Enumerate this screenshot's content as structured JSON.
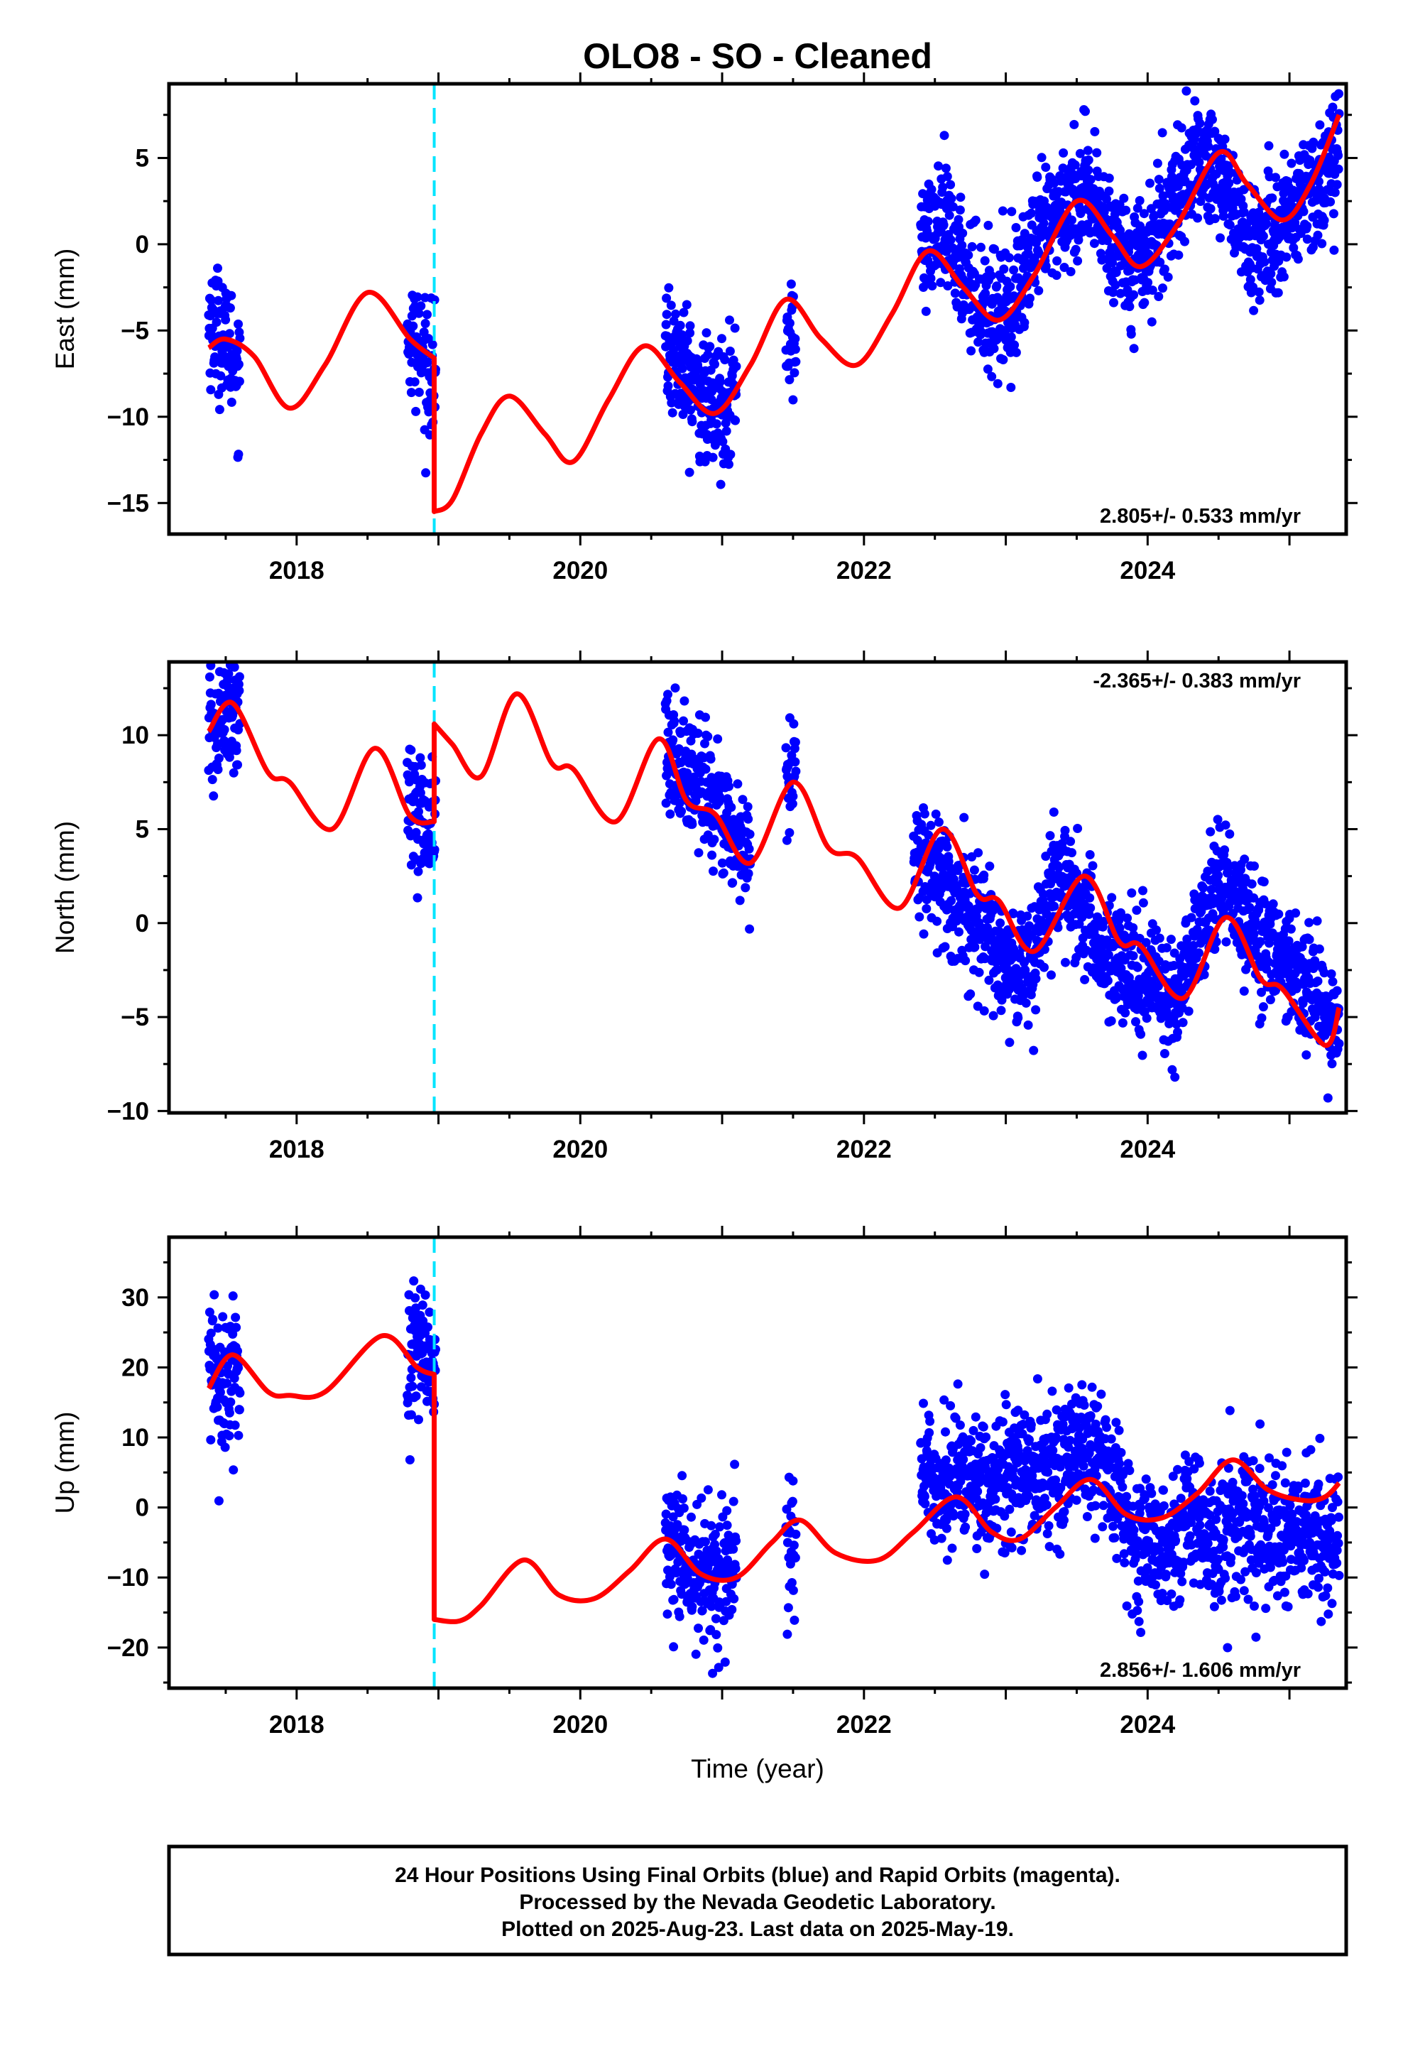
{
  "title": "OLO8  - SO - Cleaned",
  "colors": {
    "points": "#0000ff",
    "model": "#ff0000",
    "break": "#00e5ff",
    "frame": "#000000"
  },
  "footer": {
    "line1": "24 Hour Positions Using Final Orbits (blue) and Rapid Orbits (magenta).",
    "line2": "Processed by the Nevada Geodetic Laboratory.",
    "line3": "Plotted on 2025-Aug-23. Last data on 2025-May-19."
  },
  "chart_data": [
    {
      "type": "scatter",
      "ylabel": "East (mm)",
      "xlabel": "",
      "xlim": [
        2017.1,
        2025.4
      ],
      "ylim": [
        -16.8,
        9.3
      ],
      "xticks": [
        2018,
        2020,
        2022,
        2024
      ],
      "yticks": [
        -15,
        -10,
        -5,
        0,
        5
      ],
      "equipment_break": 2018.97,
      "rate": "2.805+/- 0.533 mm/yr",
      "rate_position": "bottom-right",
      "series": [
        {
          "role": "points",
          "segments": [
            {
              "x0": 2017.38,
              "x1": 2017.6,
              "y": [
                -4.5,
                -5.0,
                -6.0,
                -7.5
              ]
            },
            {
              "x0": 2018.78,
              "x1": 2018.98,
              "y": [
                -5.0,
                -6.0,
                -7.0,
                -8.0
              ]
            },
            {
              "x0": 2020.6,
              "x1": 2021.1,
              "y": [
                -6.0,
                -7.0,
                -9.0,
                -9.5,
                -8.0
              ]
            },
            {
              "x0": 2021.45,
              "x1": 2021.52,
              "y": [
                -5.0,
                -6.0
              ]
            },
            {
              "x0": 2022.4,
              "x1": 2025.35,
              "y": [
                0.0,
                1.0,
                -2.0,
                -4.0,
                -3.0,
                0.0,
                2.0,
                3.0,
                1.0,
                -1.0,
                0.0,
                3.0,
                5.0,
                4.0,
                0.0,
                0.0,
                2.0,
                3.0,
                6.0
              ]
            }
          ]
        },
        {
          "role": "model",
          "points": [
            [
              2017.38,
              -6.0
            ],
            [
              2017.5,
              -5.5
            ],
            [
              2017.7,
              -6.5
            ],
            [
              2017.95,
              -9.5
            ],
            [
              2018.2,
              -7.0
            ],
            [
              2018.5,
              -2.8
            ],
            [
              2018.8,
              -5.5
            ],
            [
              2018.97,
              -6.6
            ],
            [
              2018.97,
              -15.5
            ],
            [
              2019.1,
              -14.8
            ],
            [
              2019.3,
              -11.0
            ],
            [
              2019.5,
              -8.8
            ],
            [
              2019.75,
              -11.0
            ],
            [
              2019.95,
              -12.6
            ],
            [
              2020.2,
              -9.0
            ],
            [
              2020.45,
              -5.9
            ],
            [
              2020.7,
              -8.0
            ],
            [
              2020.95,
              -9.8
            ],
            [
              2021.2,
              -7.0
            ],
            [
              2021.45,
              -3.2
            ],
            [
              2021.7,
              -5.5
            ],
            [
              2021.95,
              -7.0
            ],
            [
              2022.2,
              -4.0
            ],
            [
              2022.45,
              -0.4
            ],
            [
              2022.7,
              -2.5
            ],
            [
              2022.95,
              -4.4
            ],
            [
              2023.2,
              -1.8
            ],
            [
              2023.5,
              2.5
            ],
            [
              2023.75,
              0.5
            ],
            [
              2023.95,
              -1.3
            ],
            [
              2024.2,
              1.0
            ],
            [
              2024.5,
              5.3
            ],
            [
              2024.7,
              3.5
            ],
            [
              2024.95,
              1.4
            ],
            [
              2025.15,
              3.5
            ],
            [
              2025.35,
              7.5
            ]
          ]
        }
      ]
    },
    {
      "type": "scatter",
      "ylabel": "North (mm)",
      "xlabel": "",
      "xlim": [
        2017.1,
        2025.4
      ],
      "ylim": [
        -10.1,
        13.9
      ],
      "xticks": [
        2018,
        2020,
        2022,
        2024
      ],
      "yticks": [
        -10,
        -5,
        0,
        5,
        10
      ],
      "equipment_break": 2018.97,
      "rate": "-2.365+/- 0.383 mm/yr",
      "rate_position": "top-right",
      "series": [
        {
          "role": "points",
          "segments": [
            {
              "x0": 2017.38,
              "x1": 2017.6,
              "y": [
                10.0,
                11.0,
                11.5
              ]
            },
            {
              "x0": 2018.78,
              "x1": 2018.98,
              "y": [
                6.5,
                5.5,
                5.0
              ]
            },
            {
              "x0": 2020.6,
              "x1": 2021.2,
              "y": [
                9.5,
                8.0,
                7.0,
                5.0,
                3.0
              ]
            },
            {
              "x0": 2021.45,
              "x1": 2021.52,
              "y": [
                8.0,
                8.0
              ]
            },
            {
              "x0": 2022.35,
              "x1": 2025.35,
              "y": [
                4.0,
                3.0,
                0.5,
                -0.5,
                -2.0,
                -2.5,
                2.5,
                1.0,
                -1.5,
                -2.5,
                -3.0,
                -4.5,
                -1.0,
                2.5,
                0.5,
                -1.5,
                -2.5,
                -3.5,
                -6.0
              ]
            }
          ]
        },
        {
          "role": "model",
          "points": [
            [
              2017.38,
              10.2
            ],
            [
              2017.55,
              11.7
            ],
            [
              2017.8,
              8.0
            ],
            [
              2017.95,
              7.5
            ],
            [
              2018.25,
              5.0
            ],
            [
              2018.55,
              9.3
            ],
            [
              2018.8,
              5.7
            ],
            [
              2018.97,
              5.4
            ],
            [
              2018.97,
              10.6
            ],
            [
              2019.1,
              9.5
            ],
            [
              2019.3,
              7.8
            ],
            [
              2019.55,
              12.2
            ],
            [
              2019.8,
              8.5
            ],
            [
              2019.95,
              8.2
            ],
            [
              2020.25,
              5.4
            ],
            [
              2020.55,
              9.8
            ],
            [
              2020.75,
              6.5
            ],
            [
              2020.95,
              5.8
            ],
            [
              2021.2,
              3.2
            ],
            [
              2021.5,
              7.5
            ],
            [
              2021.75,
              4.0
            ],
            [
              2021.95,
              3.5
            ],
            [
              2022.25,
              0.8
            ],
            [
              2022.55,
              5.0
            ],
            [
              2022.8,
              1.5
            ],
            [
              2022.95,
              1.2
            ],
            [
              2023.2,
              -1.5
            ],
            [
              2023.55,
              2.5
            ],
            [
              2023.8,
              -1.0
            ],
            [
              2023.95,
              -1.2
            ],
            [
              2024.25,
              -4.0
            ],
            [
              2024.55,
              0.3
            ],
            [
              2024.8,
              -3.0
            ],
            [
              2024.95,
              -3.5
            ],
            [
              2025.25,
              -6.5
            ],
            [
              2025.35,
              -4.5
            ]
          ]
        }
      ]
    },
    {
      "type": "scatter",
      "ylabel": "Up (mm)",
      "xlabel": "Time (year)",
      "xlim": [
        2017.1,
        2025.4
      ],
      "ylim": [
        -25.8,
        38.6
      ],
      "xticks": [
        2018,
        2020,
        2022,
        2024
      ],
      "yticks": [
        -20,
        -10,
        0,
        10,
        20,
        30
      ],
      "equipment_break": 2018.97,
      "rate": "2.856+/- 1.606 mm/yr",
      "rate_position": "bottom-right",
      "series": [
        {
          "role": "points",
          "segments": [
            {
              "x0": 2017.38,
              "x1": 2017.6,
              "y": [
                20.0,
                18.0,
                19.0
              ]
            },
            {
              "x0": 2018.78,
              "x1": 2018.98,
              "y": [
                20.0,
                22.0,
                18.0
              ]
            },
            {
              "x0": 2020.6,
              "x1": 2021.1,
              "y": [
                -5.0,
                -8.0,
                -10.0,
                -12.0,
                -8.0
              ]
            },
            {
              "x0": 2021.45,
              "x1": 2021.52,
              "y": [
                -5.0,
                -7.0
              ]
            },
            {
              "x0": 2022.4,
              "x1": 2025.35,
              "y": [
                5.0,
                3.0,
                5.0,
                2.0,
                6.0,
                5.0,
                7.0,
                8.0,
                6.0,
                -5.0,
                -6.0,
                -3.0,
                -2.0,
                -4.0,
                -2.0,
                -5.0,
                -3.0,
                -4.0,
                -5.0
              ]
            }
          ]
        },
        {
          "role": "model",
          "points": [
            [
              2017.38,
              17.0
            ],
            [
              2017.55,
              21.8
            ],
            [
              2017.8,
              16.5
            ],
            [
              2017.95,
              16.0
            ],
            [
              2018.2,
              16.5
            ],
            [
              2018.6,
              24.5
            ],
            [
              2018.85,
              20.0
            ],
            [
              2018.97,
              19.0
            ],
            [
              2018.97,
              -16.0
            ],
            [
              2019.15,
              -16.2
            ],
            [
              2019.3,
              -14.0
            ],
            [
              2019.6,
              -7.5
            ],
            [
              2019.85,
              -12.5
            ],
            [
              2020.1,
              -13.0
            ],
            [
              2020.35,
              -9.0
            ],
            [
              2020.6,
              -4.5
            ],
            [
              2020.85,
              -9.5
            ],
            [
              2021.1,
              -10.0
            ],
            [
              2021.35,
              -5.0
            ],
            [
              2021.55,
              -1.8
            ],
            [
              2021.8,
              -6.5
            ],
            [
              2022.1,
              -7.5
            ],
            [
              2022.35,
              -3.5
            ],
            [
              2022.65,
              1.5
            ],
            [
              2022.9,
              -3.5
            ],
            [
              2023.1,
              -4.5
            ],
            [
              2023.35,
              0.0
            ],
            [
              2023.6,
              4.0
            ],
            [
              2023.85,
              -1.0
            ],
            [
              2024.1,
              -1.5
            ],
            [
              2024.35,
              2.0
            ],
            [
              2024.6,
              6.8
            ],
            [
              2024.85,
              2.5
            ],
            [
              2025.1,
              1.0
            ],
            [
              2025.25,
              1.5
            ],
            [
              2025.35,
              3.5
            ]
          ]
        }
      ]
    }
  ]
}
